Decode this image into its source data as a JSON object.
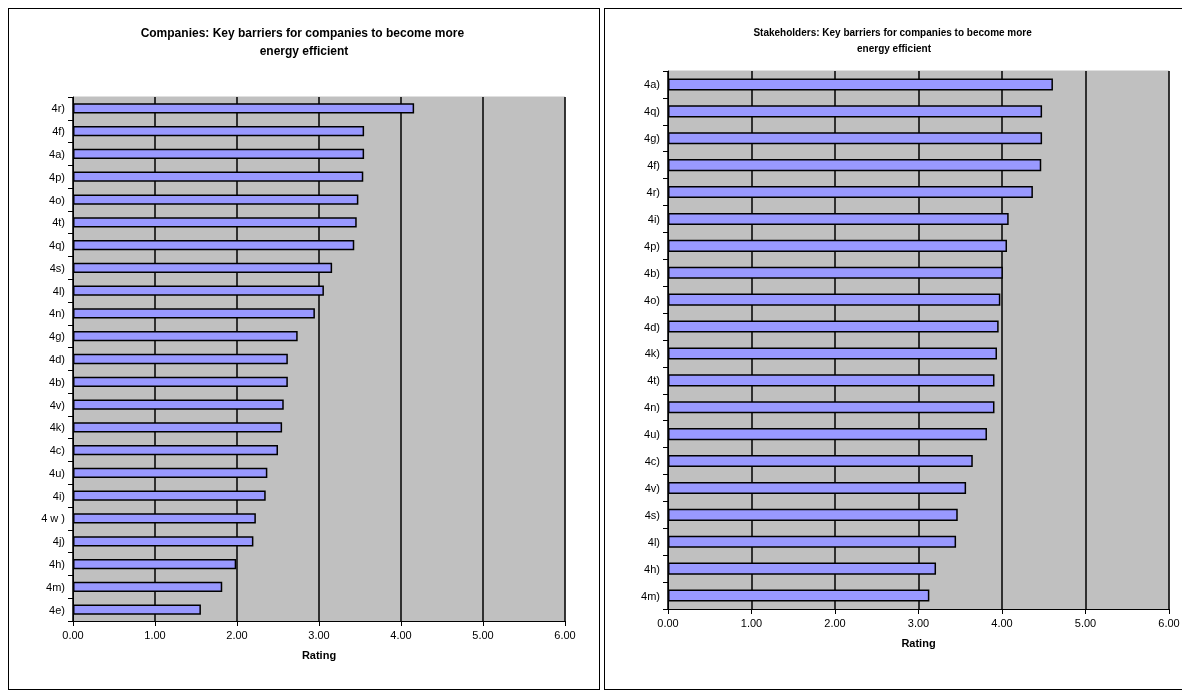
{
  "chart_data": [
    {
      "type": "bar",
      "orientation": "horizontal",
      "title": "Companies: Key barriers for companies to become more energy efficient",
      "xlabel": "Rating",
      "categories": [
        "4r)",
        "4f)",
        "4a)",
        "4p)",
        "4o)",
        "4t)",
        "4q)",
        "4s)",
        "4l)",
        "4n)",
        "4g)",
        "4d)",
        "4b)",
        "4v)",
        "4k)",
        "4c)",
        "4u)",
        "4i)",
        "4 w )",
        "4j)",
        "4h)",
        "4m)",
        "4e)"
      ],
      "values": [
        4.16,
        3.55,
        3.55,
        3.54,
        3.48,
        3.46,
        3.43,
        3.16,
        3.06,
        2.95,
        2.74,
        2.62,
        2.62,
        2.57,
        2.55,
        2.5,
        2.37,
        2.35,
        2.23,
        2.2,
        1.99,
        1.82,
        1.56
      ],
      "color": "#9999ff",
      "xlim": [
        0,
        6
      ],
      "xticks": [
        {
          "value": 0,
          "label": "0.00"
        },
        {
          "value": 1,
          "label": "1.00"
        },
        {
          "value": 2,
          "label": "2.00"
        },
        {
          "value": 3,
          "label": "3.00"
        },
        {
          "value": 4,
          "label": "4.00"
        },
        {
          "value": 5,
          "label": "5.00"
        },
        {
          "value": 6,
          "label": "6.00"
        }
      ],
      "grid": "x"
    },
    {
      "type": "bar",
      "orientation": "horizontal",
      "title": "Stakeholders: Key barriers for companies to become more energy efficient",
      "xlabel": "Rating",
      "categories": [
        "4a)",
        "4q)",
        "4g)",
        "4f)",
        "4r)",
        "4i)",
        "4p)",
        "4b)",
        "4o)",
        "4d)",
        "4k)",
        "4t)",
        "4n)",
        "4u)",
        "4c)",
        "4v)",
        "4s)",
        "4l)",
        "4h)",
        "4m)"
      ],
      "values": [
        4.61,
        4.48,
        4.48,
        4.47,
        4.37,
        4.08,
        4.06,
        4.01,
        3.98,
        3.96,
        3.94,
        3.91,
        3.91,
        3.82,
        3.65,
        3.57,
        3.47,
        3.45,
        3.21,
        3.13
      ],
      "color": "#9999ff",
      "xlim": [
        0,
        6
      ],
      "xticks": [
        {
          "value": 0,
          "label": "0.00"
        },
        {
          "value": 1,
          "label": "1.00"
        },
        {
          "value": 2,
          "label": "2.00"
        },
        {
          "value": 3,
          "label": "3.00"
        },
        {
          "value": 4,
          "label": "4.00"
        },
        {
          "value": 5,
          "label": "5.00"
        },
        {
          "value": 6,
          "label": "6.00"
        }
      ],
      "grid": "x"
    }
  ]
}
